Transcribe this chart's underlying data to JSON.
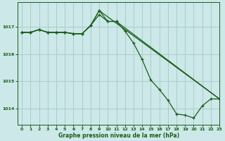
{
  "title": "Graphe pression niveau de la mer (hPa)",
  "bg_color": "#cce8e8",
  "grid_color": "#aacccc",
  "line_color": "#1a5c1a",
  "xlim": [
    -0.5,
    23
  ],
  "ylim": [
    1013.4,
    1017.9
  ],
  "yticks": [
    1014,
    1015,
    1016,
    1017
  ],
  "xticks": [
    0,
    1,
    2,
    3,
    4,
    5,
    6,
    7,
    8,
    9,
    10,
    11,
    12,
    13,
    14,
    15,
    16,
    17,
    18,
    19,
    20,
    21,
    22,
    23
  ],
  "series1_x": [
    0,
    1,
    2,
    3,
    4,
    5,
    6,
    7,
    8,
    9,
    10,
    11,
    12,
    13,
    14,
    15,
    16,
    17,
    18,
    19,
    20,
    21,
    22,
    23
  ],
  "series1_y": [
    1016.8,
    1016.8,
    1016.9,
    1016.8,
    1016.8,
    1016.8,
    1016.75,
    1016.75,
    1017.05,
    1017.6,
    1017.2,
    1017.2,
    1016.85,
    1016.4,
    1015.8,
    1015.05,
    1014.7,
    1014.3,
    1013.8,
    1013.75,
    1013.65,
    1014.1,
    1014.35,
    1014.35
  ],
  "series2_x": [
    0,
    1,
    2,
    3,
    4,
    5,
    6,
    7,
    8,
    9,
    10,
    11,
    23
  ],
  "series2_y": [
    1016.8,
    1016.8,
    1016.9,
    1016.8,
    1016.8,
    1016.8,
    1016.75,
    1016.75,
    1017.05,
    1017.45,
    1017.2,
    1017.2,
    1014.35
  ],
  "series3_x": [
    0,
    1,
    2,
    3,
    4,
    5,
    6,
    7,
    8,
    9,
    23
  ],
  "series3_y": [
    1016.8,
    1016.8,
    1016.9,
    1016.8,
    1016.8,
    1016.8,
    1016.75,
    1016.75,
    1017.05,
    1017.6,
    1014.35
  ]
}
